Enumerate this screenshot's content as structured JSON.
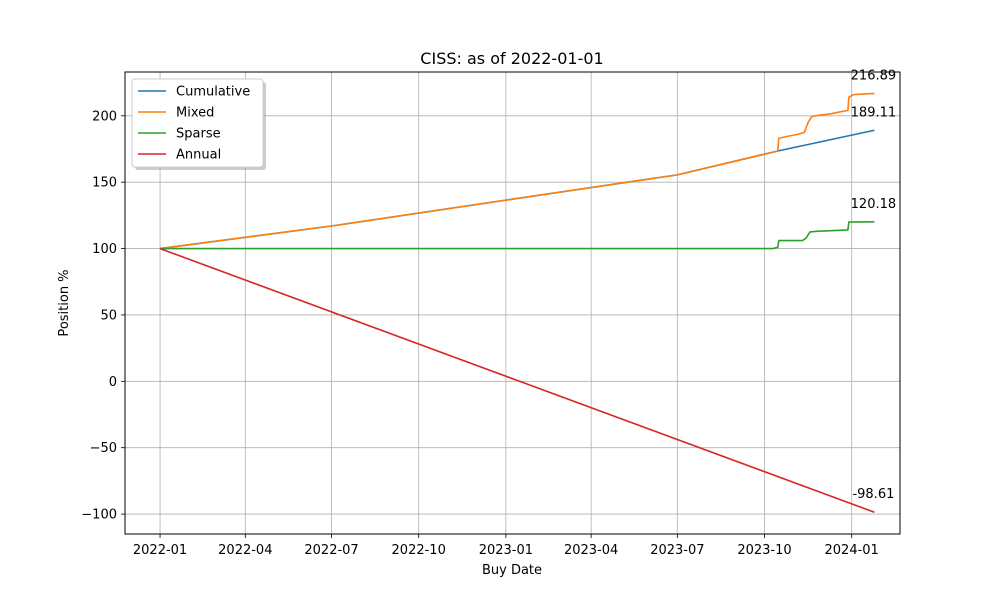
{
  "chart_data": {
    "type": "line",
    "title": "CISS: as of 2022-01-01",
    "xlabel": "Buy Date",
    "ylabel": "Position %",
    "xlim": [
      "2021-11-25",
      "2024-02-21"
    ],
    "ylim": [
      -115,
      233
    ],
    "grid": true,
    "legend_position": "top-left",
    "x_ticks": [
      "2022-01",
      "2022-04",
      "2022-07",
      "2022-10",
      "2023-01",
      "2023-04",
      "2023-07",
      "2023-10",
      "2024-01"
    ],
    "y_ticks": [
      -100,
      -50,
      0,
      50,
      100,
      150,
      200
    ],
    "y_tick_labels": [
      "−100",
      "−50",
      "0",
      "50",
      "100",
      "150",
      "200"
    ],
    "series": [
      {
        "name": "Cumulative",
        "color": "#1f77b4",
        "points": [
          [
            "2022-01-01",
            100
          ],
          [
            "2022-07-01",
            117
          ],
          [
            "2023-01-01",
            136.5
          ],
          [
            "2023-07-01",
            155.5
          ],
          [
            "2023-10-15",
            173.5
          ],
          [
            "2024-01-25",
            189.11
          ]
        ]
      },
      {
        "name": "Mixed",
        "color": "#ff7f0e",
        "points": [
          [
            "2022-01-01",
            100
          ],
          [
            "2022-07-01",
            117
          ],
          [
            "2023-01-01",
            136.5
          ],
          [
            "2023-07-01",
            155.5
          ],
          [
            "2023-10-15",
            173.5
          ],
          [
            "2023-10-16",
            183
          ],
          [
            "2023-10-25",
            184.5
          ],
          [
            "2023-11-05",
            186
          ],
          [
            "2023-11-12",
            187.5
          ],
          [
            "2023-11-16",
            195
          ],
          [
            "2023-11-20",
            199.5
          ],
          [
            "2023-11-28",
            200.5
          ],
          [
            "2023-12-10",
            201.5
          ],
          [
            "2023-12-20",
            203
          ],
          [
            "2023-12-28",
            204
          ],
          [
            "2023-12-29",
            214
          ],
          [
            "2024-01-03",
            216
          ],
          [
            "2024-01-25",
            216.89
          ]
        ]
      },
      {
        "name": "Sparse",
        "color": "#2ca02c",
        "points": [
          [
            "2022-01-01",
            100
          ],
          [
            "2023-10-10",
            100
          ],
          [
            "2023-10-15",
            101
          ],
          [
            "2023-10-16",
            106
          ],
          [
            "2023-11-10",
            106
          ],
          [
            "2023-11-14",
            108
          ],
          [
            "2023-11-18",
            112.5
          ],
          [
            "2023-11-25",
            113
          ],
          [
            "2023-12-28",
            114
          ],
          [
            "2023-12-29",
            120
          ],
          [
            "2024-01-25",
            120.18
          ]
        ]
      },
      {
        "name": "Annual",
        "color": "#d62728",
        "points": [
          [
            "2022-01-01",
            100
          ],
          [
            "2024-01-25",
            -98.61
          ]
        ]
      }
    ],
    "annotations": [
      {
        "text": "216.89",
        "x": "2024-01-25",
        "y": 216.89
      },
      {
        "text": "189.11",
        "x": "2024-01-25",
        "y": 189.11
      },
      {
        "text": "120.18",
        "x": "2024-01-25",
        "y": 120.18
      },
      {
        "text": "-98.61",
        "x": "2024-01-25",
        "y": -98.61
      }
    ]
  }
}
